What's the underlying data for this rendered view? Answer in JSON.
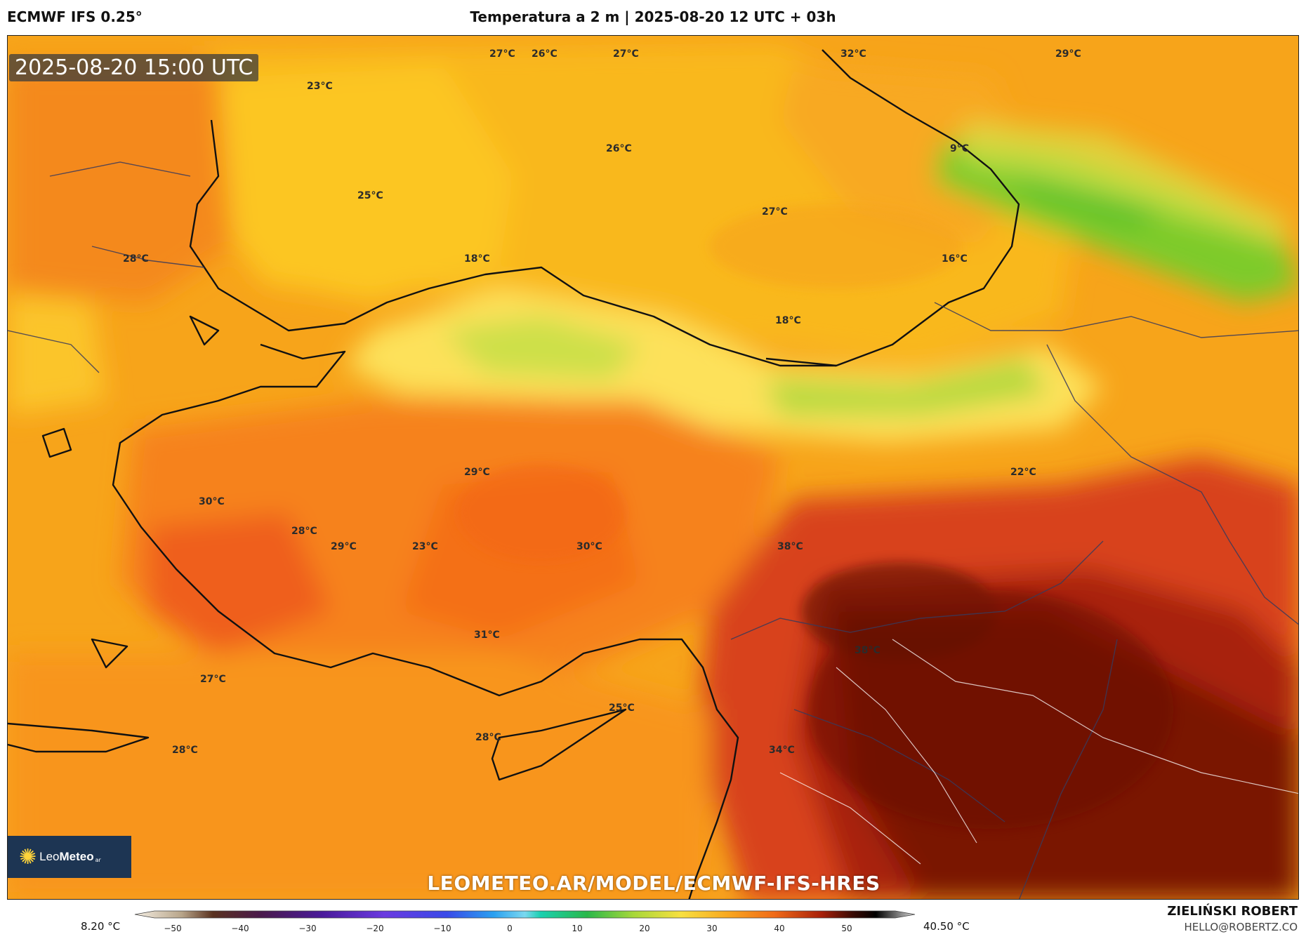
{
  "header": {
    "model": "ECMWF IFS 0.25°",
    "title": "Temperatura a 2 m | 2025-08-20 12 UTC + 03h"
  },
  "map": {
    "timestamp": "2025-08-20 15:00 UTC",
    "watermark": "LEOMETEO.AR/MODEL/ECMWF-IFS-HRES",
    "labels": [
      {
        "text": "27°C"
      },
      {
        "text": "26°C"
      },
      {
        "text": "27°C"
      },
      {
        "text": "32°C"
      },
      {
        "text": "29°C"
      },
      {
        "text": "23°C"
      },
      {
        "text": "26°C"
      },
      {
        "text": "9°C"
      },
      {
        "text": "25°C"
      },
      {
        "text": "27°C"
      },
      {
        "text": "28°C"
      },
      {
        "text": "18°C"
      },
      {
        "text": "16°C"
      },
      {
        "text": "18°C"
      },
      {
        "text": "29°C"
      },
      {
        "text": "22°C"
      },
      {
        "text": "30°C"
      },
      {
        "text": "28°C"
      },
      {
        "text": "29°C"
      },
      {
        "text": "23°C"
      },
      {
        "text": "30°C"
      },
      {
        "text": "38°C"
      },
      {
        "text": "31°C"
      },
      {
        "text": "38°C"
      },
      {
        "text": "27°C"
      },
      {
        "text": "25°C"
      },
      {
        "text": "28°C"
      },
      {
        "text": "28°C"
      },
      {
        "text": "34°C"
      }
    ]
  },
  "logo": {
    "brand_light": "Leo",
    "brand_bold": "Meteo",
    "suffix": "ar",
    "icon": "sun-icon"
  },
  "colorbar": {
    "min_label": "8.20 °C",
    "max_label": "40.50 °C",
    "ticks": [
      "−50",
      "−40",
      "−30",
      "−20",
      "−10",
      "0",
      "10",
      "20",
      "30",
      "40",
      "50"
    ]
  },
  "credits": {
    "author": "ZIELIŃSKI ROBERT",
    "email": "HELLO@ROBERTZ.CO"
  }
}
